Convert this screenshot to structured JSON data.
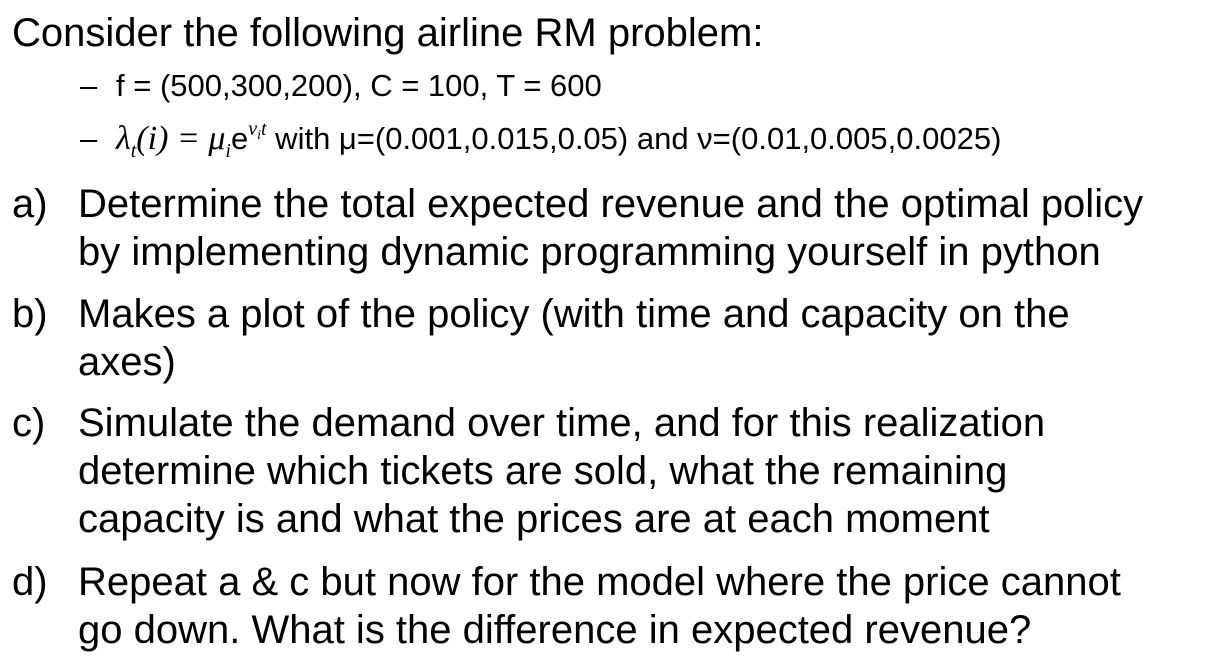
{
  "intro": "Consider the following airline RM problem:",
  "bullets": {
    "dash": "–",
    "params": "f = (500,300,200), C = 100, T = 600",
    "formula": {
      "lambda": "λ",
      "lambda_sub": "t",
      "arg": "(i) = μ",
      "mu_sub": "i",
      "e": "e",
      "exp_nu": "ν",
      "exp_sub": "i",
      "exp_t": "t",
      "tail": " with μ=(0.001,0.015,0.05) and ν=(0.01,0.005,0.0025)"
    }
  },
  "questions": [
    {
      "label": "a)",
      "line1": "Determine the total expected revenue and the optimal policy",
      "line2": "by implementing dynamic programming yourself in python"
    },
    {
      "label": "b)",
      "line1": "Makes a plot of the policy (with time and capacity on the",
      "line2": "axes)"
    },
    {
      "label": "c)",
      "line1": "Simulate the demand over time, and for this realization",
      "line2": "determine which tickets are sold, what the remaining",
      "line3": "capacity is and what the prices are at each moment"
    },
    {
      "label": "d)",
      "line1": "Repeat a & c but now for the model where the price cannot",
      "line2": "go down. What is the difference in expected revenue?"
    }
  ]
}
